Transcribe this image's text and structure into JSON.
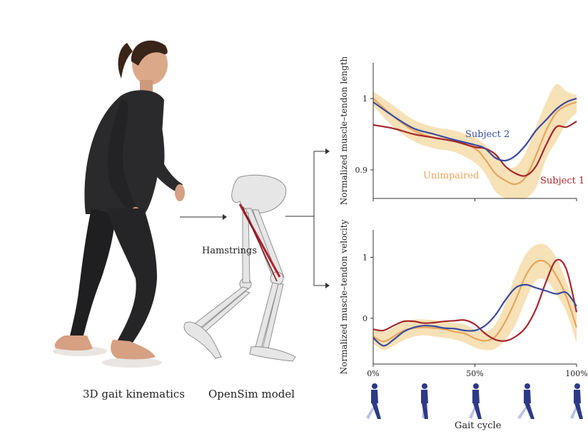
{
  "captions": {
    "kinematics": "3D gait kinematics",
    "model": "OpenSim model",
    "muscle": "Hamstrings",
    "x_axis": "Gait cycle"
  },
  "colors": {
    "unimpaired": "#e8a55a",
    "band": "#f6dcaa",
    "subject1": "#a8262a",
    "subject2": "#3b4aa0",
    "walker": "#2d3a86",
    "walker_light": "#b9c2e6"
  },
  "chart_data": [
    {
      "type": "line",
      "ylabel": "Normalized muscle–tendon length",
      "xlabel": "",
      "xlim": [
        0,
        100
      ],
      "ylim": [
        0.86,
        1.05
      ],
      "yticks": [
        0.9,
        1
      ],
      "ytick_labels": [
        "0.9",
        "1"
      ],
      "x": [
        0,
        10,
        20,
        30,
        40,
        50,
        55,
        60,
        65,
        70,
        75,
        80,
        85,
        90,
        95,
        100
      ],
      "series": [
        {
          "name": "Unimpaired",
          "role": "mean",
          "values": [
            1.0,
            0.975,
            0.955,
            0.945,
            0.94,
            0.93,
            0.915,
            0.895,
            0.885,
            0.88,
            0.89,
            0.92,
            0.955,
            0.98,
            0.99,
            0.995
          ]
        },
        {
          "name": "",
          "role": "band_upper",
          "values": [
            1.01,
            0.99,
            0.97,
            0.96,
            0.955,
            0.945,
            0.935,
            0.92,
            0.905,
            0.905,
            0.925,
            0.96,
            0.995,
            1.02,
            1.01,
            1.005
          ]
        },
        {
          "name": "",
          "role": "band_lower",
          "values": [
            0.99,
            0.96,
            0.94,
            0.93,
            0.925,
            0.91,
            0.895,
            0.87,
            0.86,
            0.86,
            0.86,
            0.875,
            0.915,
            0.94,
            0.965,
            0.98
          ]
        },
        {
          "name": "Subject 1",
          "values": [
            0.963,
            0.958,
            0.95,
            0.945,
            0.94,
            0.932,
            0.93,
            0.922,
            0.905,
            0.895,
            0.892,
            0.905,
            0.935,
            0.96,
            0.96,
            0.968
          ]
        },
        {
          "name": "Subject 2",
          "values": [
            0.995,
            0.975,
            0.958,
            0.95,
            0.942,
            0.935,
            0.93,
            0.917,
            0.913,
            0.92,
            0.935,
            0.955,
            0.97,
            0.985,
            0.995,
            1.0
          ]
        }
      ]
    },
    {
      "type": "line",
      "ylabel": "Normalized muscle–tendon velocity",
      "xlabel": "Gait cycle",
      "xlim": [
        0,
        100
      ],
      "ylim": [
        -0.75,
        1.45
      ],
      "yticks": [
        0,
        1
      ],
      "ytick_labels": [
        "0",
        "1"
      ],
      "xticks": [
        0,
        50,
        100
      ],
      "xtick_labels": [
        "0%",
        "50%",
        "100%"
      ],
      "x": [
        0,
        5,
        10,
        15,
        20,
        25,
        30,
        35,
        40,
        45,
        50,
        55,
        60,
        65,
        70,
        75,
        80,
        85,
        90,
        95,
        100
      ],
      "series": [
        {
          "name": "Unimpaired",
          "role": "mean",
          "values": [
            -0.3,
            -0.38,
            -0.3,
            -0.2,
            -0.16,
            -0.15,
            -0.16,
            -0.18,
            -0.22,
            -0.25,
            -0.33,
            -0.37,
            -0.3,
            -0.05,
            0.3,
            0.7,
            0.92,
            0.92,
            0.7,
            0.35,
            -0.15
          ]
        },
        {
          "name": "",
          "role": "band_upper",
          "values": [
            -0.18,
            -0.22,
            -0.15,
            -0.06,
            -0.02,
            -0.02,
            -0.03,
            -0.05,
            -0.08,
            -0.1,
            -0.18,
            -0.22,
            -0.1,
            0.25,
            0.7,
            1.05,
            1.2,
            1.2,
            1.0,
            0.6,
            0.1
          ]
        },
        {
          "name": "",
          "role": "band_lower",
          "values": [
            -0.42,
            -0.52,
            -0.45,
            -0.36,
            -0.3,
            -0.28,
            -0.3,
            -0.32,
            -0.35,
            -0.4,
            -0.48,
            -0.52,
            -0.5,
            -0.35,
            -0.1,
            0.3,
            0.62,
            0.62,
            0.4,
            0.1,
            -0.4
          ]
        },
        {
          "name": "Subject 1",
          "values": [
            -0.18,
            -0.2,
            -0.12,
            -0.05,
            -0.05,
            -0.08,
            -0.07,
            -0.05,
            -0.04,
            -0.03,
            -0.1,
            -0.25,
            -0.35,
            -0.37,
            -0.3,
            -0.15,
            0.15,
            0.6,
            0.95,
            0.8,
            0.1
          ]
        },
        {
          "name": "Subject 2",
          "values": [
            -0.32,
            -0.45,
            -0.35,
            -0.22,
            -0.15,
            -0.12,
            -0.13,
            -0.16,
            -0.17,
            -0.2,
            -0.2,
            -0.12,
            0.05,
            0.3,
            0.5,
            0.55,
            0.5,
            0.45,
            0.4,
            0.42,
            0.2
          ]
        }
      ]
    }
  ]
}
